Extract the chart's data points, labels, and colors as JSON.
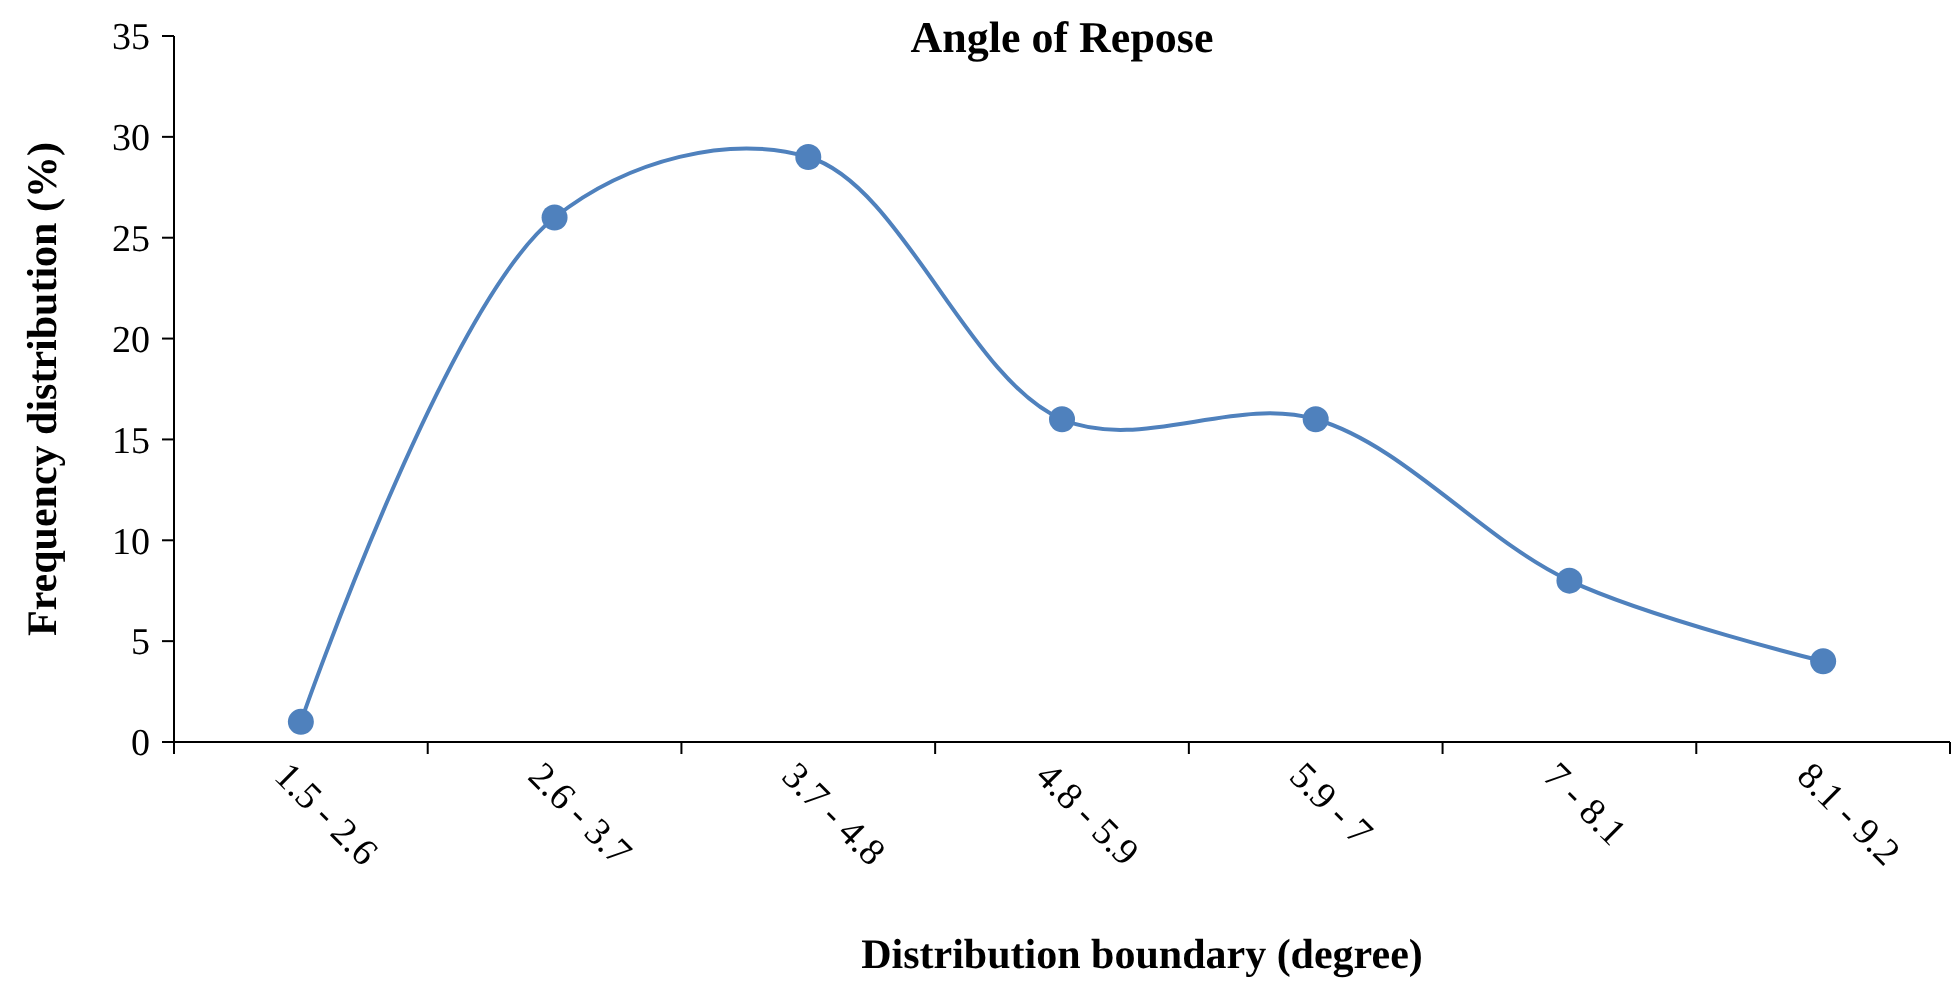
{
  "chart_data": {
    "type": "line",
    "title": "Angle of Repose",
    "xlabel": "Distribution boundary (degree)",
    "ylabel": "Frequency distribution (%)",
    "categories": [
      "1.5 - 2.6",
      "2.6 - 3.7",
      "3.7 - 4.8",
      "4.8 - 5.9",
      "5.9 - 7",
      "7 - 8.1",
      "8.1 - 9.2"
    ],
    "series": [
      {
        "color": "#4f81bd",
        "values": [
          1,
          26,
          29,
          16,
          16,
          8,
          4
        ]
      }
    ],
    "ylim": [
      0,
      35
    ],
    "yticks": [
      0,
      5,
      10,
      15,
      20,
      25,
      30,
      35
    ],
    "marker": "circle",
    "line_style": "solid",
    "grid": false
  }
}
